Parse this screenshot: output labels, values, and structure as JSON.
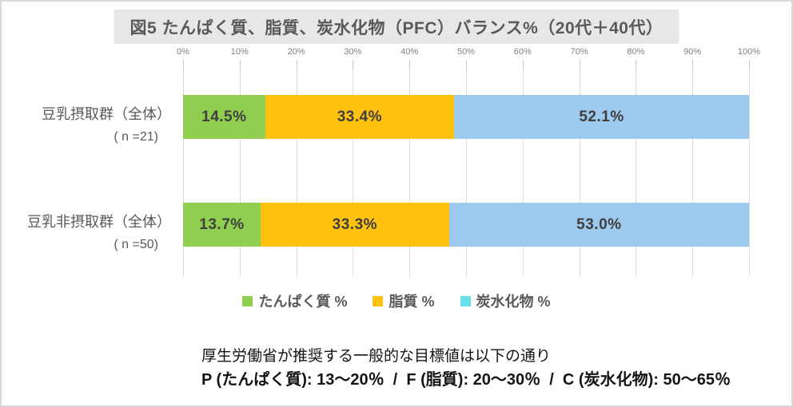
{
  "chart_data": {
    "type": "bar",
    "orientation": "horizontal",
    "stacked": true,
    "title": "図5 たんぱく質、脂質、炭水化物（PFC）バランス%（20代＋40代）",
    "categories": [
      "豆乳摂取群（全体）",
      "豆乳非摂取群（全体）"
    ],
    "category_sublabels": [
      "( n =21)",
      "( n =50)"
    ],
    "series": [
      {
        "name": "たんぱく質 %",
        "color": "#8FCE4E",
        "values": [
          14.5,
          13.7
        ]
      },
      {
        "name": "脂質 %",
        "color": "#FEC10D",
        "values": [
          33.4,
          33.3
        ]
      },
      {
        "name": "炭水化物 %",
        "color": "#9DC9EE",
        "legend_color": "#66E0E8",
        "values": [
          52.1,
          53.0
        ]
      }
    ],
    "xlim": [
      0,
      100
    ],
    "x_ticks": [
      "0%",
      "10%",
      "20%",
      "30%",
      "40%",
      "50%",
      "60%",
      "70%",
      "80%",
      "90%",
      "100%"
    ],
    "grid": true,
    "legend_position": "bottom",
    "data_label_format": "{value}%"
  },
  "footnote": {
    "line1": "厚生労働省が推奨する一般的な目標値は以下の通り",
    "line2": "P (たんぱく質): 13～20％  /  F (脂質): 20～30％  /  C (炭水化物): 50～65％"
  }
}
